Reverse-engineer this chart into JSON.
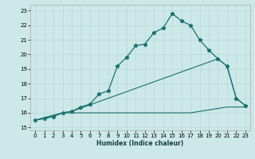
{
  "xlabel": "Humidex (Indice chaleur)",
  "background_color": "#cce8e8",
  "grid_color": "#b8d8d8",
  "line_color": "#1a7070",
  "xlim": [
    -0.5,
    23.5
  ],
  "ylim": [
    14.8,
    23.4
  ],
  "yticks": [
    15,
    16,
    17,
    18,
    19,
    20,
    21,
    22,
    23
  ],
  "xticks": [
    0,
    1,
    2,
    3,
    4,
    5,
    6,
    7,
    8,
    9,
    10,
    11,
    12,
    13,
    14,
    15,
    16,
    17,
    18,
    19,
    20,
    21,
    22,
    23
  ],
  "line1_x": [
    0,
    1,
    2,
    3,
    4,
    5,
    6,
    7,
    8,
    9,
    10,
    11,
    12,
    13,
    14,
    15,
    16,
    17,
    18,
    19,
    20,
    21,
    22,
    23
  ],
  "line1_y": [
    15.5,
    15.6,
    15.75,
    16.0,
    16.1,
    16.4,
    16.6,
    17.3,
    17.5,
    19.2,
    19.8,
    20.6,
    20.7,
    21.5,
    21.8,
    22.8,
    22.3,
    22.0,
    21.0,
    20.3,
    19.7,
    19.2,
    17.0,
    16.5
  ],
  "line2_x": [
    0,
    3,
    4,
    20,
    21,
    22,
    23
  ],
  "line2_y": [
    15.5,
    16.0,
    16.1,
    19.7,
    19.2,
    17.0,
    16.5
  ],
  "line3_x": [
    0,
    3,
    4,
    5,
    6,
    7,
    8,
    9,
    10,
    11,
    12,
    13,
    14,
    15,
    16,
    17,
    18,
    19,
    20,
    21,
    22,
    23
  ],
  "line3_y": [
    15.5,
    16.0,
    16.0,
    16.0,
    16.0,
    16.0,
    16.0,
    16.0,
    16.0,
    16.0,
    16.0,
    16.0,
    16.0,
    16.0,
    16.0,
    16.0,
    16.1,
    16.2,
    16.3,
    16.4,
    16.4,
    16.4
  ],
  "figsize": [
    3.2,
    2.0
  ],
  "dpi": 100
}
